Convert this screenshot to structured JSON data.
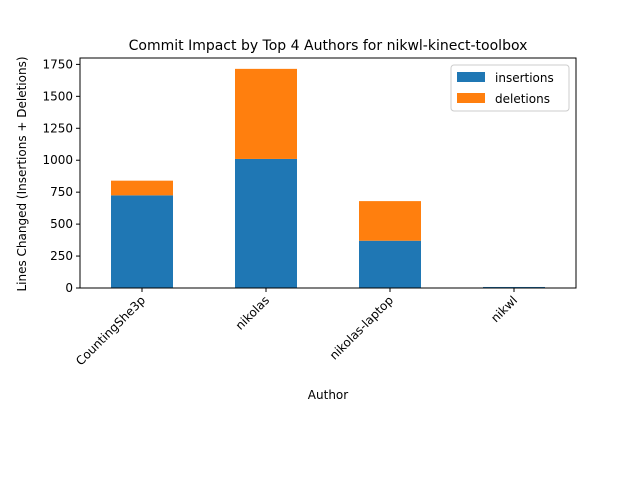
{
  "chart_data": {
    "type": "bar",
    "stacked": true,
    "title": "Commit Impact by Top 4 Authors for nikwl-kinect-toolbox",
    "xlabel": "Author",
    "ylabel": "Lines Changed (Insertions + Deletions)",
    "categories": [
      "CountingShe3p",
      "nikolas",
      "nikolas-laptop",
      "nikwl"
    ],
    "series": [
      {
        "name": "insertions",
        "color": "#1f77b4",
        "values": [
          725,
          1010,
          370,
          8
        ]
      },
      {
        "name": "deletions",
        "color": "#ff7f0e",
        "values": [
          115,
          705,
          310,
          0
        ]
      }
    ],
    "ylim": [
      0,
      1800
    ],
    "yticks": [
      0,
      250,
      500,
      750,
      1000,
      1250,
      1500,
      1750
    ],
    "legend_position": "top-right",
    "grid": false
  }
}
